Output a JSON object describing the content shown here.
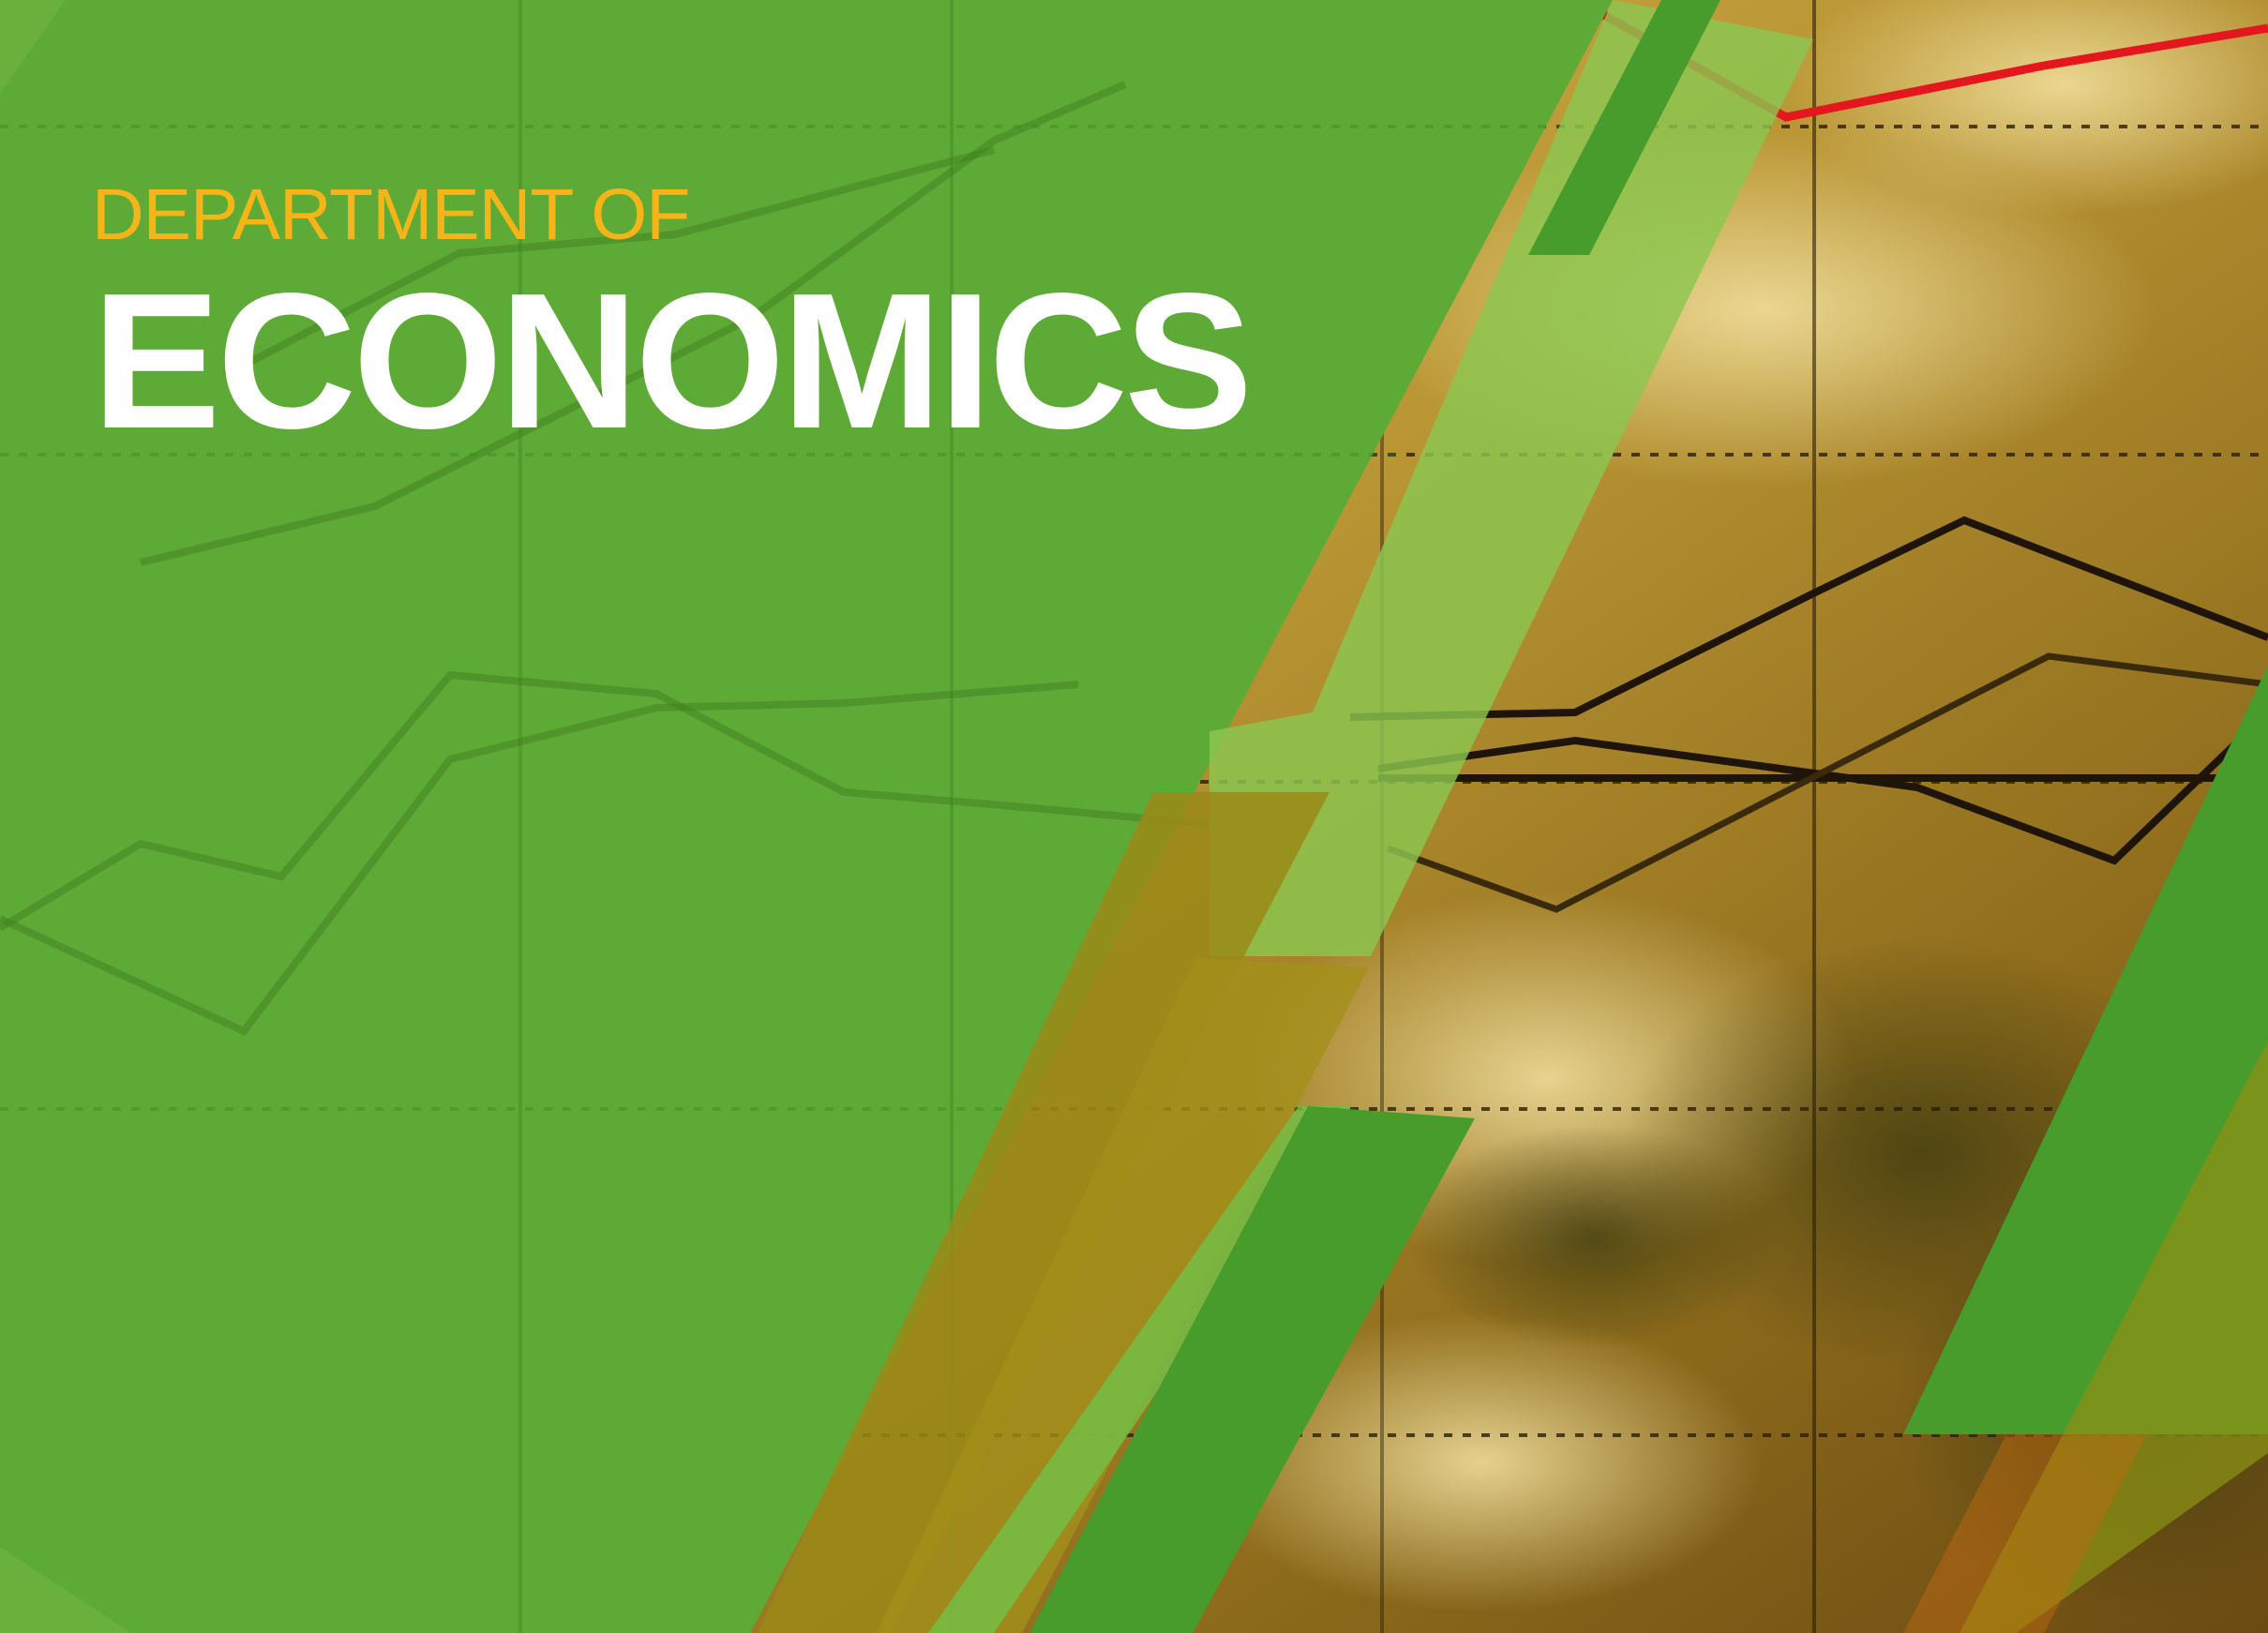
{
  "banner": {
    "subtitle": "DEPARTMENT OF",
    "title": "ECONOMICS"
  },
  "colors": {
    "green_panel": "#5eaa36",
    "light_green_stripe": "#8bc751",
    "dark_green_stripe": "#479c2c",
    "subtitle_text": "#f7b418",
    "title_text": "#ffffff",
    "chart_red_line": "#e3171d",
    "chart_dark_line": "#1e1409",
    "photo_gold": "#c9a43e"
  },
  "icons": [
    "line-chart-background",
    "world-map-background"
  ]
}
